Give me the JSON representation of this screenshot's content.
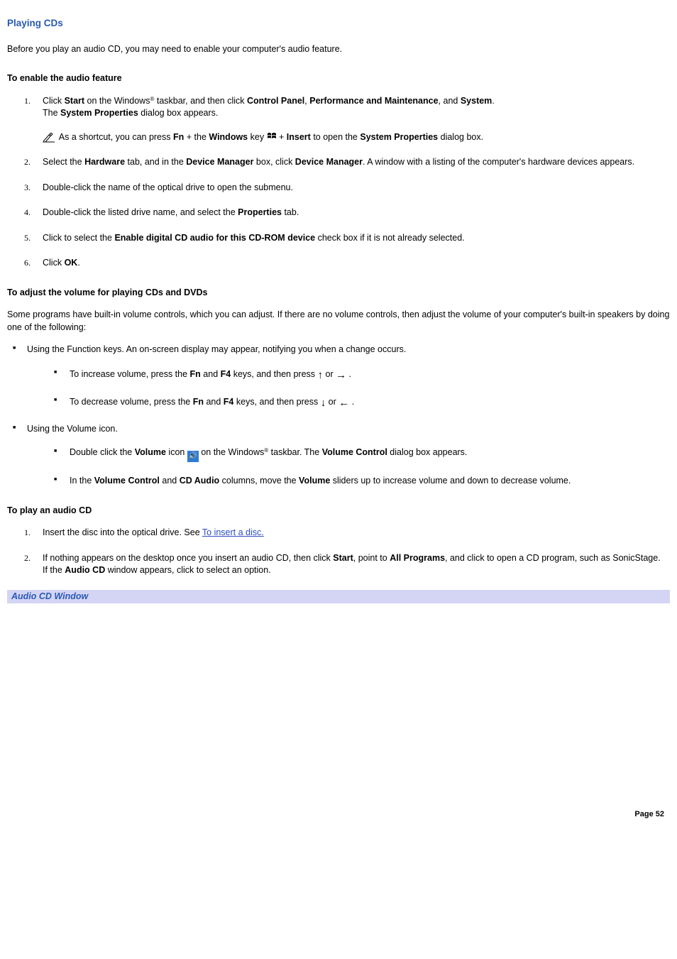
{
  "page_title": "Playing CDs",
  "intro": "Before you play an audio CD, you may need to enable your computer's audio feature.",
  "section_enable": {
    "heading": "To enable the audio feature",
    "steps": [
      {
        "num": "1.",
        "parts": [
          {
            "t": "Click "
          },
          {
            "b": "Start"
          },
          {
            "t": " on the Windows"
          },
          {
            "sup": "®"
          },
          {
            "t": " taskbar, and then click "
          },
          {
            "b": "Control Panel"
          },
          {
            "t": ", "
          },
          {
            "b": "Performance and Maintenance"
          },
          {
            "t": ", and "
          },
          {
            "b": "System"
          },
          {
            "t": ".\nThe "
          },
          {
            "b": "System Properties"
          },
          {
            "t": " dialog box appears."
          }
        ],
        "note": [
          {
            "t": "As a shortcut, you can press "
          },
          {
            "b": "Fn"
          },
          {
            "t": " + the "
          },
          {
            "b": "Windows"
          },
          {
            "t": " key "
          },
          {
            "winicon": true
          },
          {
            "t": " + "
          },
          {
            "b": "Insert"
          },
          {
            "t": " to open the "
          },
          {
            "b": "System Properties"
          },
          {
            "t": " dialog box."
          }
        ]
      },
      {
        "num": "2.",
        "parts": [
          {
            "t": "Select the "
          },
          {
            "b": "Hardware"
          },
          {
            "t": " tab, and in the "
          },
          {
            "b": "Device Manager"
          },
          {
            "t": " box, click "
          },
          {
            "b": "Device Manager"
          },
          {
            "t": ". A window with a listing of the computer's hardware devices appears."
          }
        ]
      },
      {
        "num": "3.",
        "parts": [
          {
            "t": "Double-click the name of the optical drive to open the submenu."
          }
        ]
      },
      {
        "num": "4.",
        "parts": [
          {
            "t": "Double-click the listed drive name, and select the "
          },
          {
            "b": "Properties"
          },
          {
            "t": " tab."
          }
        ]
      },
      {
        "num": "5.",
        "parts": [
          {
            "t": "Click to select the "
          },
          {
            "b": "Enable digital CD audio for this CD-ROM device"
          },
          {
            "t": " check box if it is not already selected."
          }
        ]
      },
      {
        "num": "6.",
        "parts": [
          {
            "t": "Click "
          },
          {
            "b": "OK"
          },
          {
            "t": "."
          }
        ]
      }
    ]
  },
  "section_volume": {
    "heading": "To adjust the volume for playing CDs and DVDs",
    "intro": "Some programs have built-in volume controls, which you can adjust. If there are no volume controls, then adjust the volume of your computer's built-in speakers by doing one of the following:",
    "bullets": [
      {
        "parts": [
          {
            "t": "Using the Function keys. An on-screen display may appear, notifying you when a change occurs."
          }
        ],
        "sub": [
          {
            "parts": [
              {
                "t": "To increase volume, press the "
              },
              {
                "b": "Fn"
              },
              {
                "t": " and "
              },
              {
                "b": "F4"
              },
              {
                "t": " keys, and then press  "
              },
              {
                "arrow": "↑"
              },
              {
                "t": " or "
              },
              {
                "arrow": "→"
              },
              {
                "t": " ."
              }
            ]
          },
          {
            "parts": [
              {
                "t": "To decrease volume, press the "
              },
              {
                "b": "Fn"
              },
              {
                "t": " and "
              },
              {
                "b": "F4"
              },
              {
                "t": " keys, and then press  "
              },
              {
                "arrow": "↓"
              },
              {
                "t": " or "
              },
              {
                "arrow": "←"
              },
              {
                "t": " ."
              }
            ]
          }
        ]
      },
      {
        "parts": [
          {
            "t": "Using the Volume icon."
          }
        ],
        "sub": [
          {
            "parts": [
              {
                "t": "Double click the "
              },
              {
                "b": "Volume"
              },
              {
                "t": " icon "
              },
              {
                "speaker": true
              },
              {
                "t": " on the Windows"
              },
              {
                "sup": "®"
              },
              {
                "t": " taskbar. The "
              },
              {
                "b": "Volume Control"
              },
              {
                "t": " dialog box appears."
              }
            ]
          },
          {
            "parts": [
              {
                "t": "In the "
              },
              {
                "b": "Volume Control"
              },
              {
                "t": " and "
              },
              {
                "b": "CD Audio"
              },
              {
                "t": " columns, move the "
              },
              {
                "b": "Volume"
              },
              {
                "t": " sliders up to increase volume and down to decrease volume."
              }
            ]
          }
        ]
      }
    ]
  },
  "section_play": {
    "heading": "To play an audio CD",
    "steps": [
      {
        "num": "1.",
        "parts": [
          {
            "t": "Insert the disc into the optical drive. See "
          },
          {
            "link": "To insert a disc."
          }
        ]
      },
      {
        "num": "2.",
        "parts": [
          {
            "t": "If nothing appears on the desktop once you insert an audio CD, then click "
          },
          {
            "b": "Start"
          },
          {
            "t": ", point to "
          },
          {
            "b": "All Programs"
          },
          {
            "t": ", and click to open a CD program, such as SonicStage.\nIf the "
          },
          {
            "b": "Audio CD"
          },
          {
            "t": " window appears, click to select an option."
          }
        ]
      }
    ]
  },
  "caption": "Audio CD Window",
  "page_number": "Page 52",
  "colors": {
    "heading": "#295ab3",
    "link": "#2a4fc2",
    "caption_bg": "#d4d4f4",
    "speaker_bg": "#2f7bd4"
  }
}
